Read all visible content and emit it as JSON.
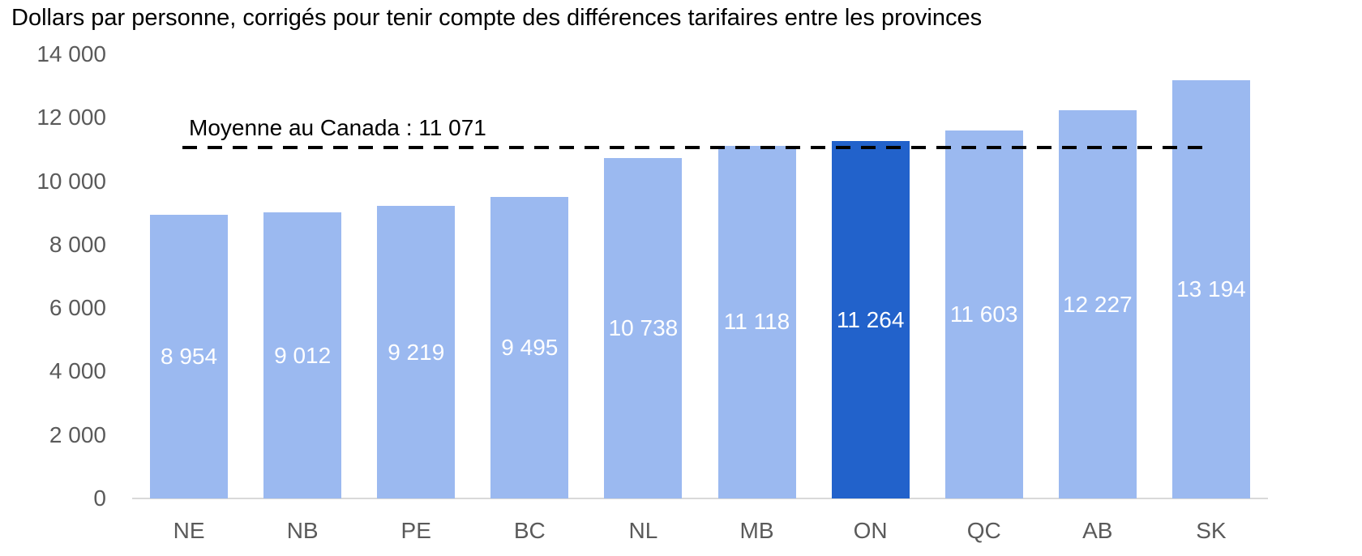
{
  "title": "Dollars par personne, corrigés pour tenir compte des différences tarifaires entre les provinces",
  "chart_data": {
    "type": "bar",
    "categories": [
      "NE",
      "NB",
      "PE",
      "BC",
      "NL",
      "MB",
      "ON",
      "QC",
      "AB",
      "SK"
    ],
    "values": [
      8954,
      9012,
      9219,
      9495,
      10738,
      11118,
      11264,
      11603,
      12227,
      13194
    ],
    "value_labels": [
      "8 954",
      "9 012",
      "9 219",
      "9 495",
      "10 738",
      "11 118",
      "11 264",
      "11 603",
      "12 227",
      "13 194"
    ],
    "highlight_category": "ON",
    "highlight_index": 6,
    "xlabel": "",
    "ylabel": "",
    "ylim": [
      0,
      14000
    ],
    "yticks": [
      0,
      2000,
      4000,
      6000,
      8000,
      10000,
      12000,
      14000
    ],
    "ytick_labels": [
      "0",
      "2 000",
      "4 000",
      "6 000",
      "8 000",
      "10 000",
      "12 000",
      "14 000"
    ],
    "grid": "off",
    "legend": "none",
    "average_line": {
      "value": 11071,
      "label": "Moyenne au Canada : 11 071",
      "style": "dashed",
      "color": "#000000"
    },
    "colors": {
      "bar": "#9BB9F0",
      "bar_highlight": "#2262CB",
      "axis_text": "#5A5A5A",
      "baseline": "#D9D9D9",
      "value_text": "#FFFFFF",
      "title_text": "#000000"
    }
  }
}
